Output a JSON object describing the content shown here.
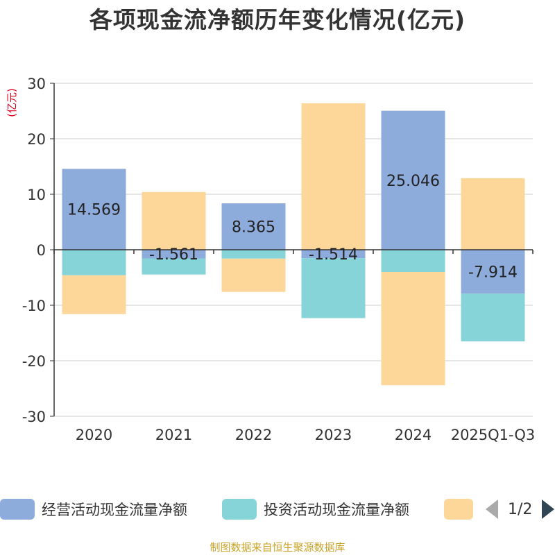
{
  "chart_data": {
    "type": "bar",
    "stacked": true,
    "title": "各项现金流净额历年变化情况(亿元)",
    "ylabel": "(亿元)",
    "ylim": [
      -30,
      30
    ],
    "yticks": [
      30,
      20,
      10,
      0,
      -10,
      -20,
      -30
    ],
    "categories": [
      "2020",
      "2021",
      "2022",
      "2023",
      "2024",
      "2025Q1-Q3"
    ],
    "series": [
      {
        "name": "经营活动现金流量净额",
        "color": "#8eacdb",
        "values": [
          14.569,
          -1.561,
          8.365,
          -1.514,
          25.046,
          -7.914
        ],
        "labels": [
          "14.569",
          "-1.561",
          "8.365",
          "-1.514",
          "25.046",
          "-7.914"
        ]
      },
      {
        "name": "投资活动现金流量净额",
        "color": "#86d4d8",
        "values": [
          -4.6,
          -2.9,
          -1.6,
          -10.8,
          -4.0,
          -8.6
        ]
      },
      {
        "name": "",
        "color": "#fdd799",
        "values": [
          -7.0,
          10.4,
          -6.0,
          26.4,
          -20.4,
          12.9
        ]
      }
    ],
    "legend_placement": "bottom"
  },
  "legend": {
    "items": [
      {
        "label": "经营活动现金流量净额",
        "color": "#8eacdb"
      },
      {
        "label": "投资活动现金流量净额",
        "color": "#86d4d8"
      },
      {
        "label": "",
        "color": "#fdd799"
      }
    ],
    "page": "1/2"
  },
  "source": "制图数据来自恒生聚源数据库"
}
